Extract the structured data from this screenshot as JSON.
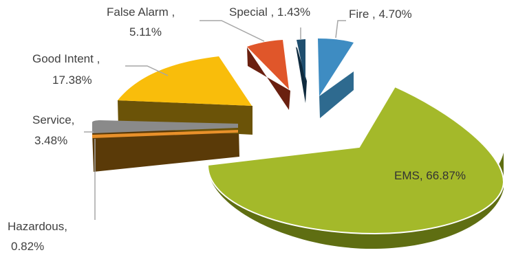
{
  "chart_data": {
    "type": "pie",
    "style": "3d-exploded",
    "legend": "none",
    "slices": [
      {
        "category": "Fire",
        "value": 4.7,
        "label_line1": "Fire , 4.70%",
        "label_line2": "",
        "color": "#3E8CC2",
        "side_color": "#2E6A8F"
      },
      {
        "category": "EMS",
        "value": 66.87,
        "label_line1": "EMS, 66.87%",
        "label_line2": "",
        "color": "#A4B92A",
        "side_color": "#5F6E12"
      },
      {
        "category": "Hazardous",
        "value": 0.82,
        "label_line1": "Hazardous,",
        "label_line2": "0.82%",
        "color": "#E8902A",
        "side_color": "#8A4E0A"
      },
      {
        "category": "Service",
        "value": 3.48,
        "label_line1": "Service,",
        "label_line2": "3.48%",
        "color": "#8A8A8A",
        "side_color": "#5A3A08"
      },
      {
        "category": "Good Intent",
        "value": 17.38,
        "label_line1": "Good Intent ,",
        "label_line2": "17.38%",
        "color": "#F9BD0B",
        "side_color": "#6B5308"
      },
      {
        "category": "False Alarm",
        "value": 5.11,
        "label_line1": "False Alarm ,",
        "label_line2": "5.11%",
        "color": "#E0562A",
        "side_color": "#6A2010"
      },
      {
        "category": "Special",
        "value": 1.43,
        "label_line1": "Special , 1.43%",
        "label_line2": "",
        "color": "#1F4E6E",
        "side_color": "#0E2A3E"
      }
    ]
  }
}
